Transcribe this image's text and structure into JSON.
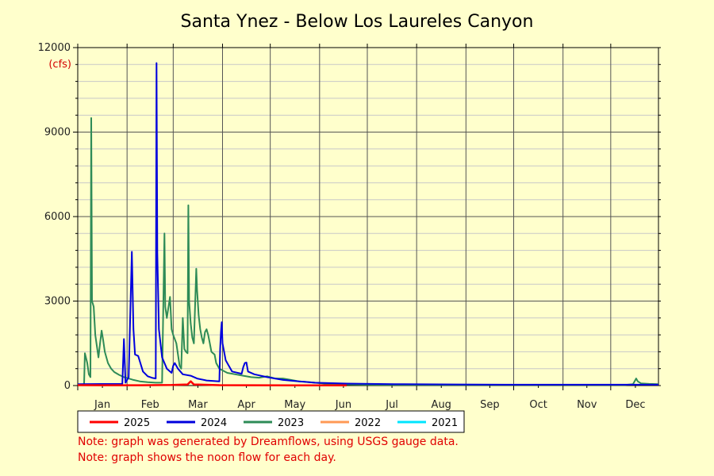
{
  "chart_data": {
    "type": "line",
    "title": "Santa Ynez - Below Los Laureles Canyon",
    "y_unit": "(cfs)",
    "ylim": [
      0,
      12000
    ],
    "yticks": [
      0,
      3000,
      6000,
      9000,
      12000
    ],
    "x_range_days": [
      1,
      366
    ],
    "months": [
      "Jan",
      "Feb",
      "Mar",
      "Apr",
      "May",
      "Jun",
      "Jul",
      "Aug",
      "Sep",
      "Oct",
      "Nov",
      "Dec"
    ],
    "month_start_days": [
      1,
      32,
      61,
      92,
      122,
      153,
      183,
      214,
      245,
      275,
      306,
      336
    ],
    "grid": true,
    "legend_placement": "bottom",
    "series": [
      {
        "name": "2025",
        "color": "#ff0000",
        "points": [
          [
            1,
            15
          ],
          [
            20,
            10
          ],
          [
            40,
            10
          ],
          [
            60,
            20
          ],
          [
            70,
            40
          ],
          [
            72,
            150
          ],
          [
            74,
            40
          ],
          [
            90,
            15
          ],
          [
            110,
            10
          ],
          [
            140,
            5
          ],
          [
            170,
            5
          ]
        ]
      },
      {
        "name": "2024",
        "color": "#0000dd",
        "points": [
          [
            1,
            50
          ],
          [
            29,
            60
          ],
          [
            30,
            1650
          ],
          [
            31,
            100
          ],
          [
            33,
            300
          ],
          [
            35,
            4750
          ],
          [
            36,
            2000
          ],
          [
            37,
            1100
          ],
          [
            39,
            1050
          ],
          [
            42,
            500
          ],
          [
            45,
            330
          ],
          [
            48,
            270
          ],
          [
            50,
            250
          ],
          [
            50.5,
            11450
          ],
          [
            51,
            4700
          ],
          [
            52,
            2000
          ],
          [
            54,
            1000
          ],
          [
            57,
            600
          ],
          [
            60,
            450
          ],
          [
            61,
            700
          ],
          [
            62,
            800
          ],
          [
            64,
            600
          ],
          [
            67,
            400
          ],
          [
            72,
            350
          ],
          [
            76,
            250
          ],
          [
            82,
            180
          ],
          [
            90,
            150
          ],
          [
            90.5,
            1300
          ],
          [
            91,
            1900
          ],
          [
            91.5,
            2250
          ],
          [
            92,
            1500
          ],
          [
            94,
            900
          ],
          [
            98,
            500
          ],
          [
            104,
            420
          ],
          [
            105,
            650
          ],
          [
            106,
            800
          ],
          [
            107,
            820
          ],
          [
            108,
            500
          ],
          [
            112,
            400
          ],
          [
            120,
            300
          ],
          [
            130,
            200
          ],
          [
            140,
            150
          ],
          [
            150,
            100
          ],
          [
            170,
            70
          ],
          [
            200,
            50
          ],
          [
            240,
            40
          ],
          [
            280,
            30
          ],
          [
            320,
            30
          ],
          [
            366,
            30
          ]
        ]
      },
      {
        "name": "2023",
        "color": "#2e8b57",
        "points": [
          [
            1,
            30
          ],
          [
            5,
            50
          ],
          [
            5.5,
            1150
          ],
          [
            7,
            800
          ],
          [
            8,
            400
          ],
          [
            9,
            300
          ],
          [
            9.5,
            9500
          ],
          [
            10,
            3000
          ],
          [
            11,
            2800
          ],
          [
            12,
            1800
          ],
          [
            13,
            1400
          ],
          [
            14,
            1000
          ],
          [
            15,
            1500
          ],
          [
            16,
            1950
          ],
          [
            17,
            1600
          ],
          [
            18,
            1200
          ],
          [
            20,
            800
          ],
          [
            22,
            600
          ],
          [
            24,
            480
          ],
          [
            27,
            380
          ],
          [
            30,
            300
          ],
          [
            33,
            250
          ],
          [
            36,
            200
          ],
          [
            40,
            150
          ],
          [
            45,
            120
          ],
          [
            50,
            100
          ],
          [
            54,
            100
          ],
          [
            55.5,
            5400
          ],
          [
            56,
            2800
          ],
          [
            57,
            2400
          ],
          [
            59,
            3150
          ],
          [
            60,
            2000
          ],
          [
            61,
            1800
          ],
          [
            63,
            1500
          ],
          [
            65,
            700
          ],
          [
            66,
            600
          ],
          [
            67,
            2400
          ],
          [
            68,
            1300
          ],
          [
            69,
            1200
          ],
          [
            70,
            1150
          ],
          [
            70.5,
            6400
          ],
          [
            71,
            3000
          ],
          [
            72,
            2200
          ],
          [
            73,
            1700
          ],
          [
            74,
            1500
          ],
          [
            75.5,
            4150
          ],
          [
            76,
            3400
          ],
          [
            77,
            2500
          ],
          [
            78,
            2000
          ],
          [
            79,
            1700
          ],
          [
            80,
            1500
          ],
          [
            81,
            1900
          ],
          [
            82,
            2000
          ],
          [
            83,
            1800
          ],
          [
            84,
            1500
          ],
          [
            85,
            1200
          ],
          [
            86,
            1150
          ],
          [
            87,
            1100
          ],
          [
            88,
            800
          ],
          [
            90,
            600
          ],
          [
            95,
            450
          ],
          [
            100,
            400
          ],
          [
            105,
            350
          ],
          [
            110,
            300
          ],
          [
            115,
            280
          ],
          [
            120,
            330
          ],
          [
            125,
            250
          ],
          [
            130,
            250
          ],
          [
            135,
            200
          ],
          [
            140,
            150
          ],
          [
            150,
            100
          ],
          [
            160,
            50
          ],
          [
            180,
            30
          ],
          [
            200,
            25
          ],
          [
            250,
            20
          ],
          [
            300,
            20
          ],
          [
            345,
            20
          ],
          [
            350,
            50
          ],
          [
            352,
            250
          ],
          [
            353,
            150
          ],
          [
            355,
            80
          ],
          [
            360,
            60
          ],
          [
            366,
            50
          ]
        ]
      },
      {
        "name": "2022",
        "color": "#ff9955",
        "points": []
      },
      {
        "name": "2021",
        "color": "#00e5ff",
        "points": []
      }
    ]
  },
  "notes": [
    "Note: graph was generated by Dreamflows, using USGS gauge data.",
    "Note: graph shows the noon flow for each day."
  ]
}
